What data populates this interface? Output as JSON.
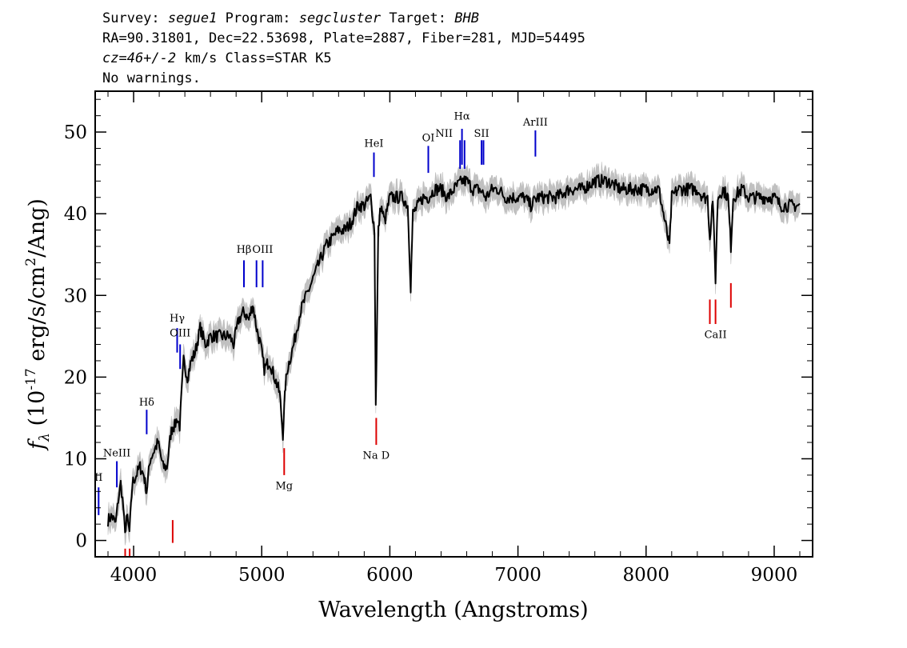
{
  "header": {
    "survey_label": "Survey:",
    "survey": "segue1",
    "program_label": "Program:",
    "program": "segcluster",
    "target_label": "Target:",
    "target": "BHB",
    "line2": "RA=90.31801, Dec=22.53698, Plate=2887, Fiber=281, MJD=54495",
    "redshift": "cz=46+/-2",
    "redshift_unit": "km/s Class=STAR K5",
    "warnings": "No warnings."
  },
  "chart_data": {
    "type": "line",
    "xlabel": "Wavelength (Angstroms)",
    "ylabel_prefix": "f",
    "ylabel_sub": "λ",
    "ylabel_rest": " (10",
    "ylabel_exp": "-17",
    "ylabel_unit": " erg/s/cm",
    "ylabel_exp2": "2",
    "ylabel_end": "/Ang)",
    "xlim": [
      3700,
      9300
    ],
    "ylim": [
      -2,
      55
    ],
    "xticks": [
      4000,
      5000,
      6000,
      7000,
      8000,
      9000
    ],
    "yticks": [
      0,
      10,
      20,
      30,
      40,
      50
    ],
    "colors": {
      "flux": "#000000",
      "error": "#c0c0c0",
      "emission": "#0000cc",
      "absorption": "#dd0000"
    },
    "series": [
      {
        "role": "flux",
        "x": [
          3800,
          3830,
          3860,
          3880,
          3900,
          3920,
          3933,
          3945,
          3968,
          3990,
          4020,
          4050,
          4080,
          4101,
          4130,
          4160,
          4190,
          4230,
          4260,
          4290,
          4305,
          4320,
          4340,
          4360,
          4390,
          4420,
          4450,
          4480,
          4520,
          4560,
          4600,
          4650,
          4700,
          4750,
          4780,
          4820,
          4861,
          4900,
          4930,
          4960,
          4990,
          5020,
          5060,
          5100,
          5140,
          5165,
          5175,
          5185,
          5200,
          5250,
          5300,
          5350,
          5400,
          5450,
          5500,
          5550,
          5600,
          5650,
          5700,
          5750,
          5800,
          5850,
          5880,
          5890,
          5896,
          5910,
          5930,
          5960,
          6000,
          6050,
          6100,
          6140,
          6163,
          6180,
          6220,
          6260,
          6300,
          6350,
          6400,
          6450,
          6500,
          6563,
          6600,
          6650,
          6700,
          6750,
          6800,
          6850,
          6900,
          6950,
          7000,
          7050,
          7100,
          7150,
          7200,
          7300,
          7400,
          7500,
          7600,
          7700,
          7800,
          7900,
          8000,
          8100,
          8183,
          8200,
          8250,
          8300,
          8400,
          8450,
          8480,
          8498,
          8520,
          8542,
          8560,
          8600,
          8640,
          8662,
          8680,
          8750,
          8800,
          8850,
          8900,
          8950,
          9000,
          9050,
          9100,
          9150,
          9200
        ],
        "y": [
          2.5,
          3,
          2,
          5,
          7,
          4,
          0.5,
          3,
          1,
          7,
          8,
          9,
          8,
          6,
          10,
          11,
          12,
          9,
          9,
          13,
          14,
          14,
          15,
          14,
          22,
          20,
          22,
          23,
          26,
          24,
          25,
          25,
          25,
          25,
          24,
          27,
          28,
          27,
          29,
          26,
          24,
          21,
          22,
          20,
          18,
          13,
          16,
          19,
          21,
          24,
          28,
          30,
          32,
          34,
          36,
          37,
          38,
          38,
          39,
          41,
          41,
          42,
          38,
          17,
          22,
          38,
          41,
          39,
          42,
          42,
          42,
          41,
          31,
          40,
          41,
          42,
          42,
          43,
          43,
          42,
          43,
          44,
          44,
          43,
          43,
          42,
          43,
          43,
          42,
          42,
          42,
          42,
          41,
          42,
          42,
          42,
          43,
          43,
          44,
          44,
          43,
          43,
          43,
          43,
          36,
          42,
          43,
          43,
          43,
          42,
          42,
          37,
          42,
          32,
          42,
          43,
          42,
          36,
          42,
          43,
          42,
          42,
          42,
          42,
          42,
          41,
          41,
          41,
          41
        ],
        "band": 1.3
      }
    ],
    "annotations": [
      {
        "label": "II",
        "x": 3727,
        "kind": "emission",
        "label_y": 7.3,
        "y0": 3.1,
        "y1": 6.5
      },
      {
        "label": "NeIII",
        "x": 3869,
        "kind": "emission",
        "label_y": 10.3,
        "y0": 6.5,
        "y1": 9.7
      },
      {
        "label": "Hδ",
        "x": 4102,
        "kind": "emission",
        "label_y": 16.5,
        "y0": 13,
        "y1": 16
      },
      {
        "label": "Hγ",
        "x": 4340,
        "kind": "emission",
        "label_y": 26.8,
        "y0": 23,
        "y1": 26
      },
      {
        "label": "OIII",
        "x": 4363,
        "kind": "emission",
        "label_y": 25,
        "y0": 21,
        "y1": 24
      },
      {
        "label": "Hβ",
        "x": 4861,
        "kind": "emission",
        "label_y": 35.2,
        "y0": 31,
        "y1": 34.3
      },
      {
        "label": "OIII",
        "x": 4959,
        "kind": "emission",
        "label_y": 35.2,
        "y0": 31,
        "y1": 34.3,
        "nolabel": true
      },
      {
        "label": "OIII",
        "x": 5007,
        "kind": "emission",
        "label_y": 35.2,
        "y0": 31,
        "y1": 34.3
      },
      {
        "label": "HeI",
        "x": 5876,
        "kind": "emission",
        "label_y": 48.2,
        "y0": 44.5,
        "y1": 47.5
      },
      {
        "label": "OI",
        "x": 6300,
        "kind": "emission",
        "label_y": 48.9,
        "y0": 45,
        "y1": 48.3
      },
      {
        "label": "NII",
        "x": 6548,
        "kind": "emission",
        "label_y": 49.4,
        "y0": 45.5,
        "y1": 49,
        "label_dx": -20
      },
      {
        "label": "Hα",
        "x": 6563,
        "kind": "emission",
        "label_y": 51.5,
        "y0": 46,
        "y1": 50.4
      },
      {
        "label": "NII",
        "x": 6583,
        "kind": "emission",
        "label_y": 49.4,
        "y0": 45.5,
        "y1": 49,
        "nolabel": true
      },
      {
        "label": "SII",
        "x": 6716,
        "kind": "emission",
        "label_y": 49.4,
        "y0": 46,
        "y1": 49
      },
      {
        "label": "SII",
        "x": 6731,
        "kind": "emission",
        "label_y": 49.4,
        "y0": 46,
        "y1": 49,
        "nolabel": true
      },
      {
        "label": "ArIII",
        "x": 7136,
        "kind": "emission",
        "label_y": 50.8,
        "y0": 47,
        "y1": 50.2
      },
      {
        "label": "CaII",
        "x": 3934,
        "kind": "absorption",
        "label_y": -3.5,
        "y0": -1,
        "y1": -2,
        "nolabel": true
      },
      {
        "label": "CaII",
        "x": 3969,
        "kind": "absorption",
        "label_y": -3.5,
        "y0": -1,
        "y1": -2,
        "nolabel": true
      },
      {
        "label": "G",
        "x": 4305,
        "kind": "absorption",
        "label_y": -2.2,
        "y0": -0.3,
        "y1": 2.5,
        "nolabel": true
      },
      {
        "label": "Mg",
        "x": 5175,
        "kind": "absorption",
        "label_y": 6.3,
        "y0": 8,
        "y1": 11.3
      },
      {
        "label": "Na D",
        "x": 5894,
        "kind": "absorption",
        "label_y": 10,
        "y0": 11.7,
        "y1": 15
      },
      {
        "label": "CaII",
        "x": 8498,
        "kind": "absorption",
        "label_y": 24.8,
        "y0": 26.5,
        "y1": 29.5,
        "nolabel": true
      },
      {
        "label": "CaII",
        "x": 8542,
        "kind": "absorption",
        "label_y": 24.8,
        "y0": 26.5,
        "y1": 29.5
      },
      {
        "label": "CaII",
        "x": 8662,
        "kind": "absorption",
        "label_y": 24.8,
        "y0": 28.5,
        "y1": 31.5,
        "nolabel": true
      }
    ]
  }
}
